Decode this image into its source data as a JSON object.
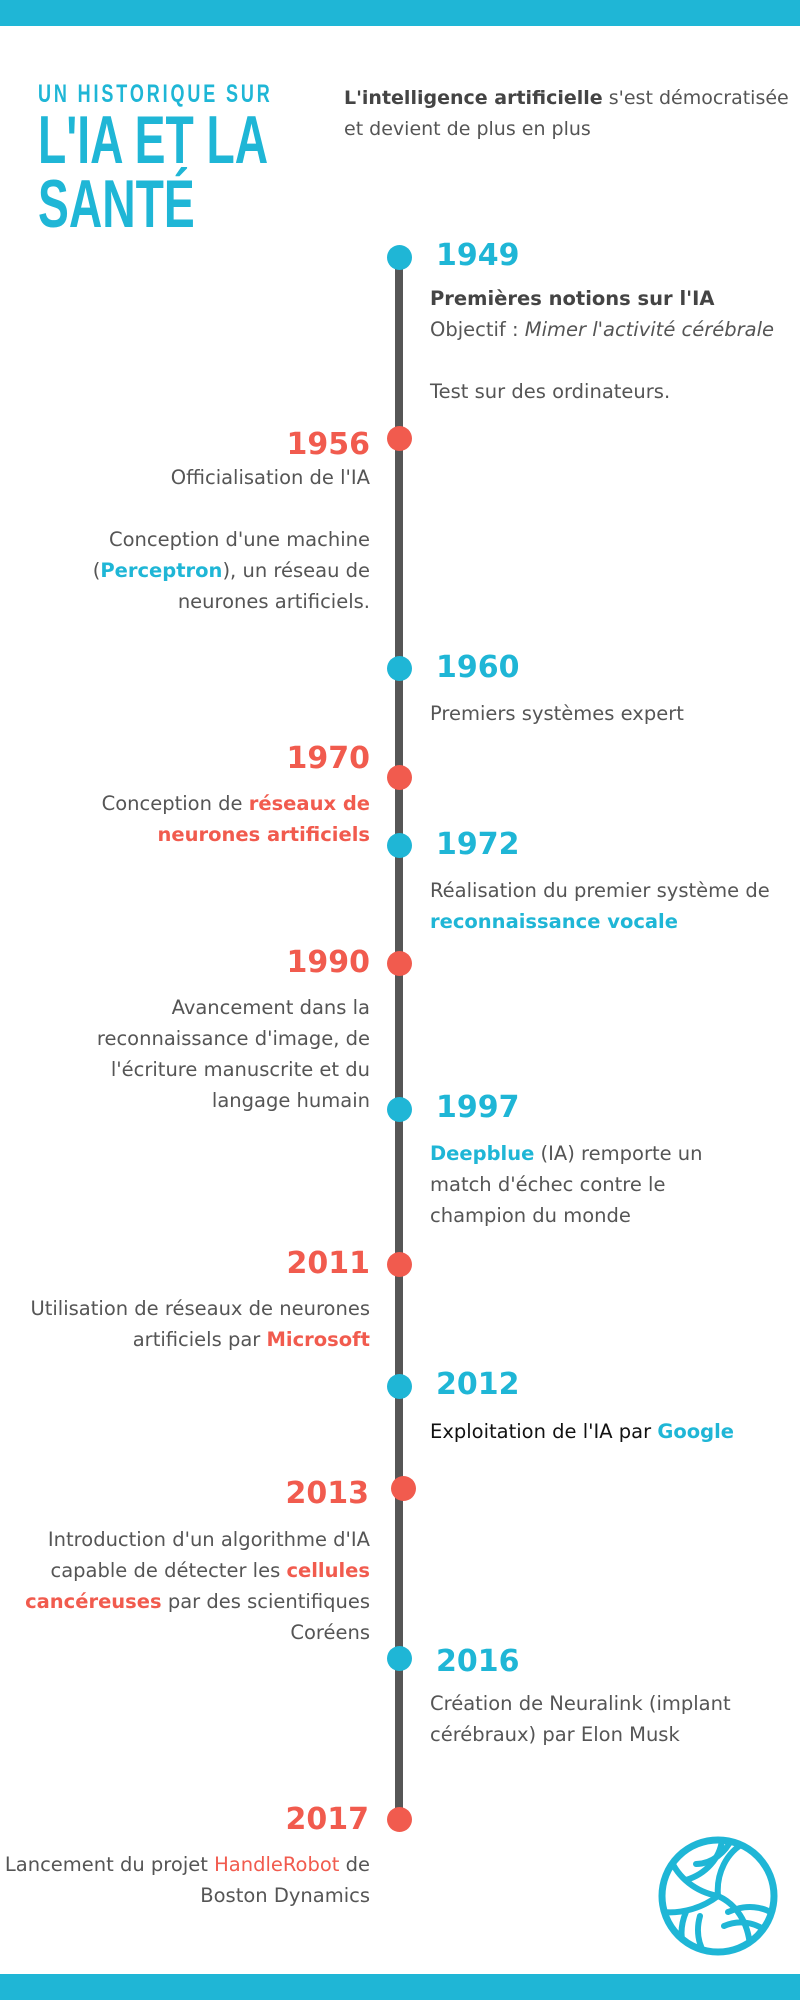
{
  "header": {
    "kicker": "UN HISTORIQUE SUR",
    "title_line1": "L'IA ET LA",
    "title_line2": "SANTÉ",
    "intro_bold": "L'intelligence artificielle",
    "intro_rest": " s'est démocratisée et devient de plus en plus"
  },
  "colors": {
    "blue": "#1fb6d6",
    "red": "#f15b4e",
    "line": "#565656"
  },
  "timeline": {
    "e1949": {
      "year": "1949",
      "heading": "Premières notions sur l'IA",
      "objectif_label": "Objectif : ",
      "objectif_value": "Mimer l'activité cérébrale",
      "note": "Test sur des ordinateurs."
    },
    "e1956": {
      "year": "1956",
      "line1": "Officialisation de l'IA",
      "p2_before": "Conception d'une machine (",
      "p2_highlight": "Perceptron",
      "p2_after": "), un réseau de neurones artificiels."
    },
    "e1960": {
      "year": "1960",
      "text": "Premiers systèmes expert"
    },
    "e1970": {
      "year": "1970",
      "before": "Conception de ",
      "highlight": "réseaux de neurones artificiels"
    },
    "e1972": {
      "year": "1972",
      "before": "Réalisation du premier système de ",
      "highlight": "reconnaissance vocale"
    },
    "e1990": {
      "year": "1990",
      "text": "Avancement dans la reconnaissance d'image, de l'écriture manuscrite et du langage humain"
    },
    "e1997": {
      "year": "1997",
      "highlight": "Deepblue",
      "after": " (IA) remporte un match d'échec contre le champion du monde"
    },
    "e2011": {
      "year": "2011",
      "before": "Utilisation de réseaux de neurones artificiels par ",
      "highlight": "Microsoft"
    },
    "e2012": {
      "year": "2012",
      "before": "Exploitation de l'IA par ",
      "highlight": "Google"
    },
    "e2013": {
      "year": "2013",
      "before": "Introduction d'un algorithme d'IA capable de détecter les ",
      "highlight": "cellules cancéreuses",
      "after": " par des scientifiques Coréens"
    },
    "e2016": {
      "year": "2016",
      "text": "Création de Neuralink (implant cérébraux) par Elon Musk"
    },
    "e2017": {
      "year": "2017",
      "before": "Lancement du projet ",
      "highlight": "HandleRobot",
      "after": " de Boston Dynamics"
    }
  },
  "icons": {
    "footer_icon": "volleyball-icon"
  }
}
